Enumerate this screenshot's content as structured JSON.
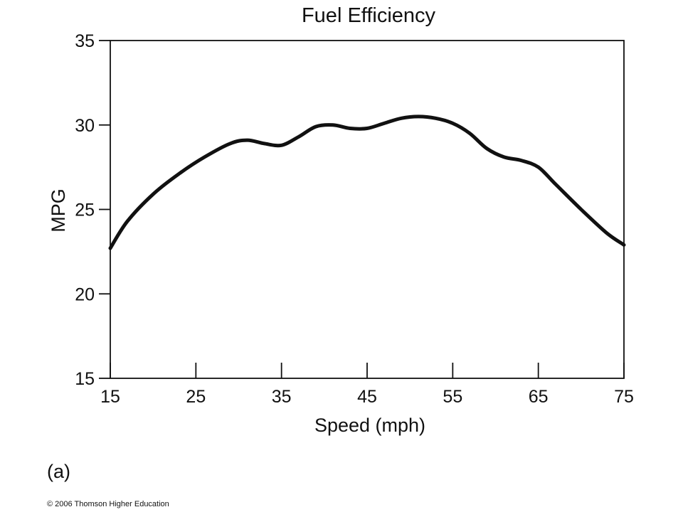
{
  "panel_label": "(a)",
  "copyright": "© 2006 Thomson Higher Education",
  "chart_data": {
    "type": "line",
    "title": "Fuel Efficiency",
    "xlabel": "Speed (mph)",
    "ylabel": "MPG",
    "xlim": [
      15,
      75
    ],
    "ylim": [
      15,
      35
    ],
    "xticks": [
      15,
      25,
      35,
      45,
      55,
      65,
      75
    ],
    "yticks": [
      15,
      20,
      25,
      30,
      35
    ],
    "grid": false,
    "legend": "none",
    "line_color": "#111111",
    "series": [
      {
        "x": [
          15,
          17,
          20,
          23,
          26,
          29,
          31,
          33,
          35,
          37,
          39,
          41,
          43,
          45,
          47,
          49,
          51,
          53,
          55,
          57,
          59,
          61,
          63,
          65,
          67,
          70,
          73,
          75
        ],
        "y": [
          22.7,
          24.3,
          25.9,
          27.1,
          28.1,
          28.9,
          29.1,
          28.9,
          28.8,
          29.3,
          29.9,
          30.0,
          29.8,
          29.8,
          30.1,
          30.4,
          30.5,
          30.4,
          30.1,
          29.5,
          28.6,
          28.1,
          27.9,
          27.5,
          26.5,
          25.0,
          23.6,
          22.9
        ]
      }
    ]
  }
}
